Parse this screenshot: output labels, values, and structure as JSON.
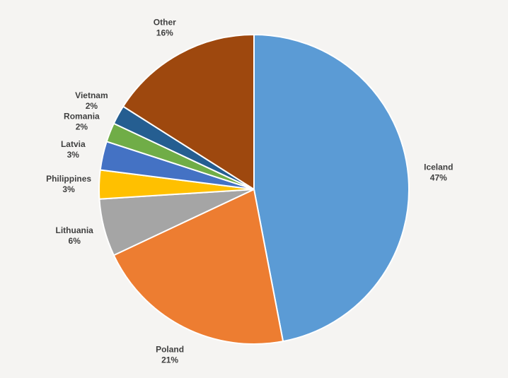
{
  "chart_data": {
    "type": "pie",
    "title": "",
    "start_angle_deg": 0,
    "direction": "clockwise",
    "slices": [
      {
        "label": "Iceland",
        "value": 47,
        "value_label": "47%",
        "color": "#5b9bd5"
      },
      {
        "label": "Poland",
        "value": 21,
        "value_label": "21%",
        "color": "#ed7d31"
      },
      {
        "label": "Lithuania",
        "value": 6,
        "value_label": "6%",
        "color": "#a5a5a5"
      },
      {
        "label": "Philippines",
        "value": 3,
        "value_label": "3%",
        "color": "#ffc000"
      },
      {
        "label": "Latvia",
        "value": 3,
        "value_label": "3%",
        "color": "#4472c4"
      },
      {
        "label": "Romania",
        "value": 2,
        "value_label": "2%",
        "color": "#70ad47"
      },
      {
        "label": "Vietnam",
        "value": 2,
        "value_label": "2%",
        "color": "#255e91"
      },
      {
        "label": "Other",
        "value": 16,
        "value_label": "16%",
        "color": "#9e480e"
      }
    ],
    "legend": "none",
    "data_labels": "outside"
  }
}
